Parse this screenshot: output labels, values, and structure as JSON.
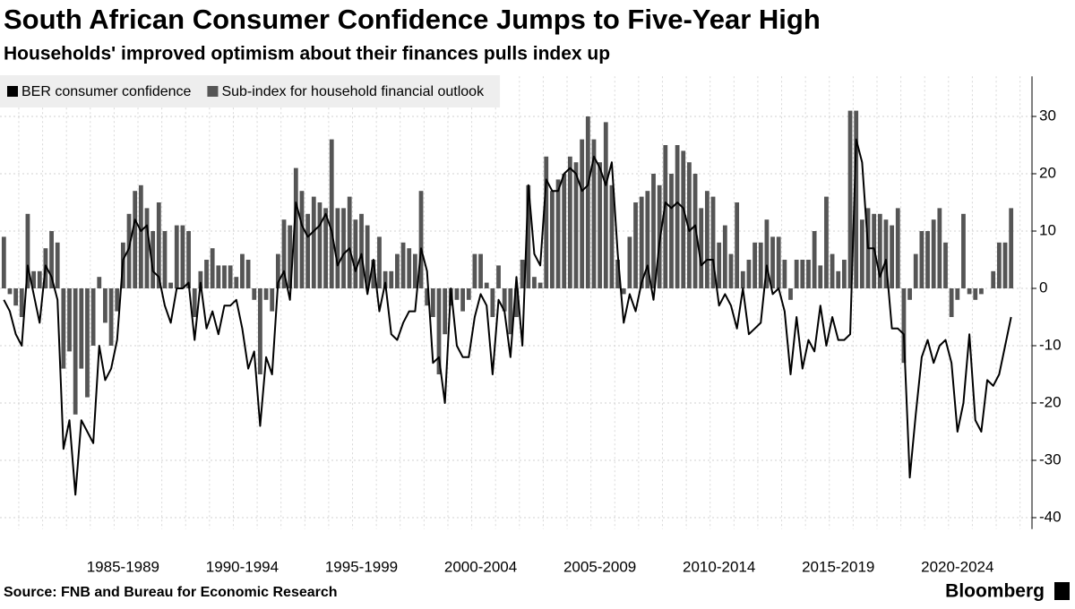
{
  "chart_data": {
    "type": "combo",
    "title": "South African Consumer Confidence Jumps to Five-Year High",
    "subtitle": "Households' improved optimism about their finances pulls index up",
    "source": "Source: FNB and Bureau for Economic Research",
    "brand": "Bloomberg",
    "categories": [
      null,
      null,
      null,
      null,
      null,
      null,
      null,
      null,
      null,
      null,
      null,
      null,
      null,
      null,
      null,
      null,
      null,
      null,
      null,
      null,
      "1985-1989",
      null,
      null,
      null,
      null,
      null,
      null,
      null,
      null,
      null,
      null,
      null,
      null,
      null,
      null,
      null,
      null,
      null,
      null,
      null,
      "1990-1994",
      null,
      null,
      null,
      null,
      null,
      null,
      null,
      null,
      null,
      null,
      null,
      null,
      null,
      null,
      null,
      null,
      null,
      null,
      null,
      "1995-1999",
      null,
      null,
      null,
      null,
      null,
      null,
      null,
      null,
      null,
      null,
      null,
      null,
      null,
      null,
      null,
      null,
      null,
      null,
      null,
      "2000-2004",
      null,
      null,
      null,
      null,
      null,
      null,
      null,
      null,
      null,
      null,
      null,
      null,
      null,
      null,
      null,
      null,
      null,
      null,
      null,
      "2005-2009",
      null,
      null,
      null,
      null,
      null,
      null,
      null,
      null,
      null,
      null,
      null,
      null,
      null,
      null,
      null,
      null,
      null,
      null,
      null,
      "2010-2014",
      null,
      null,
      null,
      null,
      null,
      null,
      null,
      null,
      null,
      null,
      null,
      null,
      null,
      null,
      null,
      null,
      null,
      null,
      null,
      "2015-2019",
      null,
      null,
      null,
      null,
      null,
      null,
      null,
      null,
      null,
      null,
      null,
      null,
      null,
      null,
      null,
      null,
      null,
      null,
      null,
      "2020-2024",
      null,
      null,
      null,
      null,
      null,
      null,
      null,
      null,
      null
    ],
    "series": [
      {
        "name": "BER consumer confidence",
        "type": "line",
        "color": "#000000",
        "values": [
          -2,
          -4,
          -8,
          -10,
          4,
          -1,
          -6,
          4,
          2,
          -2,
          -28,
          -23,
          -36,
          -23,
          -25,
          -27,
          -10,
          -16,
          -14,
          -9,
          5,
          7,
          12,
          10,
          11,
          3,
          2,
          -3,
          -6,
          0,
          0,
          1,
          -9,
          1,
          -7,
          -4,
          -8,
          -3,
          -3,
          -2,
          -7,
          -14,
          -11,
          -24,
          -12,
          -15,
          1,
          3,
          -2,
          15,
          11,
          9,
          10,
          11,
          13,
          10,
          4,
          6,
          7,
          3,
          6,
          -1,
          5,
          -4,
          1,
          -8,
          -9,
          -6,
          -4,
          -4,
          7,
          3,
          -13,
          -12,
          -20,
          0,
          -10,
          -12,
          -12,
          -5,
          -1,
          -3,
          -15,
          -2,
          -4,
          -12,
          2,
          -10,
          18,
          6,
          4,
          19,
          17,
          17,
          20,
          21,
          20,
          17,
          18,
          23,
          21,
          18,
          22,
          6,
          -6,
          -1,
          -4,
          1,
          4,
          -2,
          8,
          15,
          14,
          15,
          14,
          10,
          11,
          4,
          5,
          5,
          -3,
          -1,
          -3,
          -7,
          0,
          -8,
          -7,
          -6,
          4,
          -1,
          0,
          -4,
          -15,
          -5,
          -14,
          -9,
          -11,
          -3,
          -10,
          -5,
          -9,
          -9,
          -8,
          26,
          22,
          7,
          7,
          2,
          5,
          -7,
          -7,
          -8,
          -33,
          -22,
          -12,
          -9,
          -13,
          -10,
          -9,
          -13,
          -25,
          -20,
          -8,
          -23,
          -25,
          -16,
          -17,
          -15,
          -10,
          -5
        ]
      },
      {
        "name": "Sub-index for household financial outlook",
        "type": "bar",
        "color": "#555555",
        "values": [
          9,
          -1,
          -3,
          -5,
          13,
          3,
          3,
          7,
          10,
          8,
          -14,
          -11,
          -22,
          -14,
          -19,
          -10,
          2,
          -6,
          -10,
          -4,
          8,
          13,
          17,
          18,
          14,
          10,
          15,
          10,
          1,
          11,
          11,
          10,
          -5,
          3,
          5,
          7,
          4,
          4,
          4,
          2,
          6,
          5,
          -2,
          -15,
          -2,
          -4,
          6,
          12,
          11,
          21,
          17,
          13,
          16,
          15,
          14,
          26,
          14,
          14,
          16,
          12,
          13,
          11,
          5,
          9,
          3,
          3,
          6,
          8,
          7,
          6,
          17,
          -3,
          -5,
          -15,
          -8,
          -3,
          -2,
          -4,
          -2,
          6,
          6,
          1,
          -5,
          4,
          -4,
          -8,
          -5,
          5,
          18,
          2,
          1,
          23,
          17,
          19,
          20,
          23,
          22,
          26,
          30,
          26,
          22,
          29,
          18,
          5,
          -1,
          9,
          15,
          16,
          17,
          20,
          18,
          25,
          20,
          25,
          24,
          22,
          20,
          14,
          17,
          16,
          8,
          11,
          6,
          15,
          3,
          5,
          8,
          8,
          12,
          9,
          9,
          5,
          -2,
          5,
          5,
          5,
          10,
          4,
          16,
          6,
          3,
          5,
          31,
          31,
          12,
          14,
          13,
          13,
          12,
          11,
          14,
          -13,
          -2,
          6,
          10,
          10,
          12,
          14,
          8,
          -5,
          -2,
          13,
          -1,
          -2,
          -1,
          0,
          3,
          8,
          8,
          14
        ]
      }
    ],
    "ylim": [
      -42,
      37
    ],
    "yticks": [
      30,
      20,
      10,
      0,
      -10,
      -20,
      -30,
      -40
    ],
    "grid": true,
    "legend": "top-left"
  }
}
